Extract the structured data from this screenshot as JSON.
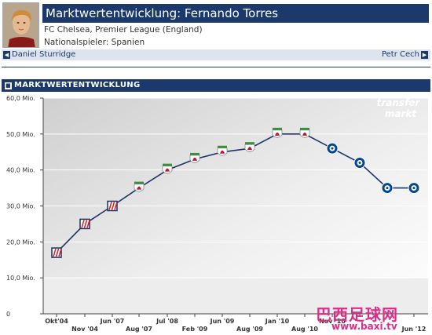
{
  "header": {
    "title": "Marktwertentwicklung: Fernando Torres",
    "club_line": "FC Chelsea, Premier League (England)",
    "nationality_line": "Nationalspieler: Spanien",
    "prev_player": "Daniel Sturridge",
    "next_player": "Petr Cech"
  },
  "section": {
    "title": "MARKTWERTENTWICKLUNG"
  },
  "branding": {
    "logo_top": "transfer",
    "logo_bottom": "markt"
  },
  "watermark": {
    "chinese": "巴西足球网",
    "url": "www.baxi.tv"
  },
  "colors": {
    "navy": "#1b3a6b",
    "line": "#1f3566",
    "atletico_red": "#cc2222",
    "liverpool_red": "#c8102e",
    "chelsea_blue": "#034694",
    "watermark": "#d8308a"
  },
  "chart_data": {
    "type": "line",
    "title": "",
    "xlabel": "",
    "ylabel": "",
    "ylim": [
      0,
      60
    ],
    "yticks": [
      "0",
      "10,0 Mio.",
      "20,0 Mio.",
      "30,0 Mio.",
      "40,0 Mio.",
      "50,0 Mio.",
      "60,0 Mio."
    ],
    "x_labels_upper": [
      "Okt'04",
      "Jun '07",
      "Jul '08",
      "Jun '09",
      "Jan '10",
      "Nov '10"
    ],
    "x_labels_lower": [
      "Nov '04",
      "Aug '07",
      "Feb '09",
      "Aug '09",
      "Aug '10",
      "Jun '12"
    ],
    "grid": true,
    "series": [
      {
        "name": "",
        "points": [
          {
            "date": "Okt'04",
            "value": 17,
            "club": "Atletico Madrid"
          },
          {
            "date": "Nov '04",
            "value": 25,
            "club": "Atletico Madrid"
          },
          {
            "date": "Jun '07",
            "value": 30,
            "club": "Atletico Madrid"
          },
          {
            "date": "Aug '07",
            "value": 35,
            "club": "Liverpool"
          },
          {
            "date": "Jul '08",
            "value": 40,
            "club": "Liverpool"
          },
          {
            "date": "Feb '09",
            "value": 43,
            "club": "Liverpool"
          },
          {
            "date": "Jun '09",
            "value": 45,
            "club": "Liverpool"
          },
          {
            "date": "Aug '09",
            "value": 46,
            "club": "Liverpool"
          },
          {
            "date": "Jan '10",
            "value": 50,
            "club": "Liverpool"
          },
          {
            "date": "Aug '10",
            "value": 50,
            "club": "Liverpool"
          },
          {
            "date": "Nov '10",
            "value": 46,
            "club": "Chelsea"
          },
          {
            "date": "",
            "value": 42,
            "club": "Chelsea"
          },
          {
            "date": "",
            "value": 35,
            "club": "Chelsea"
          },
          {
            "date": "Jun '12",
            "value": 35,
            "club": "Chelsea"
          }
        ]
      }
    ]
  }
}
